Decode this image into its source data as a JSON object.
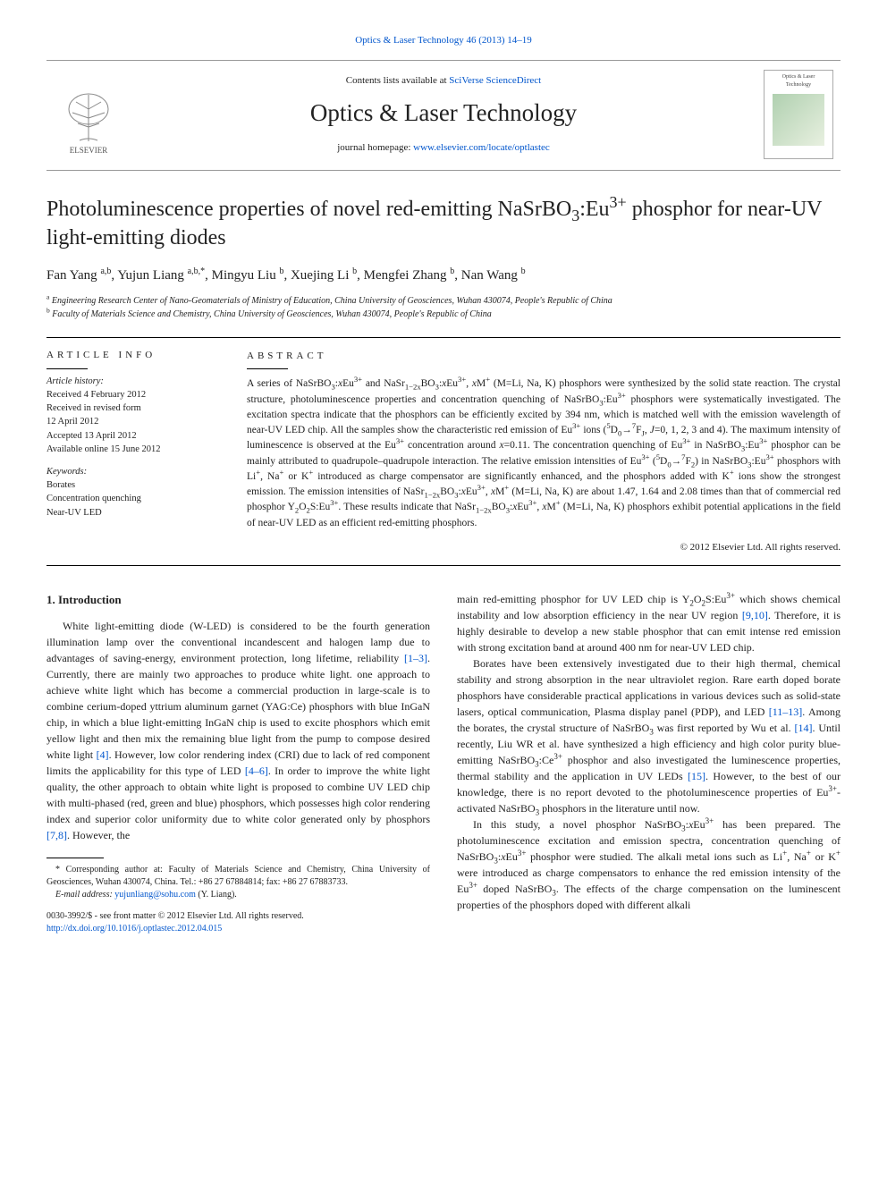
{
  "top_citation_pre": "Optics & Laser Technology 46 (2013) 14–19",
  "header": {
    "contents_pre": "Contents lists available at ",
    "contents_link": "SciVerse ScienceDirect",
    "journal_name": "Optics & Laser Technology",
    "homepage_pre": "journal homepage: ",
    "homepage_link": "www.elsevier.com/locate/optlastec",
    "elsevier_label": "ELSEVIER",
    "cover_label_1": "Optics & Laser",
    "cover_label_2": "Technology"
  },
  "article": {
    "title_html": "Photoluminescence properties of novel red-emitting NaSrBO<sub>3</sub>:Eu<sup>3+</sup> phosphor for near-UV light-emitting diodes",
    "authors_html": "Fan Yang <sup>a,b</sup>, Yujun Liang <sup>a,b,*</sup>, Mingyu Liu <sup>b</sup>, Xuejing Li <sup>b</sup>, Mengfei Zhang <sup>b</sup>, Nan Wang <sup>b</sup>",
    "affiliations": [
      "<sup>a</sup> Engineering Research Center of Nano-Geomaterials of Ministry of Education, China University of Geosciences, Wuhan 430074, People's Republic of China",
      "<sup>b</sup> Faculty of Materials Science and Chemistry, China University of Geosciences, Wuhan 430074, People's Republic of China"
    ]
  },
  "info": {
    "heading": "ARTICLE INFO",
    "history_label": "Article history:",
    "history": [
      "Received 4 February 2012",
      "Received in revised form",
      "12 April 2012",
      "Accepted 13 April 2012",
      "Available online 15 June 2012"
    ],
    "keywords_label": "Keywords:",
    "keywords": [
      "Borates",
      "Concentration quenching",
      "Near-UV LED"
    ]
  },
  "abstract": {
    "heading": "ABSTRACT",
    "body_html": "A series of NaSrBO<sub>3</sub>:<i>x</i>Eu<sup>3+</sup> and NaSr<sub>1−2x</sub>BO<sub>3</sub>:<i>x</i>Eu<sup>3+</sup>, <i>x</i>M<sup>+</sup> (M=Li, Na, K) phosphors were synthesized by the solid state reaction. The crystal structure, photoluminescence properties and concentration quenching of NaSrBO<sub>3</sub>:Eu<sup>3+</sup> phosphors were systematically investigated. The excitation spectra indicate that the phosphors can be efficiently excited by 394 nm, which is matched well with the emission wavelength of near-UV LED chip. All the samples show the characteristic red emission of Eu<sup>3+</sup> ions (<sup>5</sup>D<sub>0</sub>→<sup>7</sup>F<sub>J</sub>, <i>J</i>=0, 1, 2, 3 and 4). The maximum intensity of luminescence is observed at the Eu<sup>3+</sup> concentration around <i>x</i>=0.11. The concentration quenching of Eu<sup>3+</sup> in NaSrBO<sub>3</sub>:Eu<sup>3+</sup> phosphor can be mainly attributed to quadrupole–quadrupole interaction. The relative emission intensities of Eu<sup>3+</sup> (<sup>5</sup>D<sub>0</sub>→<sup>7</sup>F<sub>2</sub>) in NaSrBO<sub>3</sub>:Eu<sup>3+</sup> phosphors with Li<sup>+</sup>, Na<sup>+</sup> or K<sup>+</sup> introduced as charge compensator are significantly enhanced, and the phosphors added with K<sup>+</sup> ions show the strongest emission. The emission intensities of NaSr<sub>1−2x</sub>BO<sub>3</sub>:<i>x</i>Eu<sup>3+</sup>, <i>x</i>M<sup>+</sup> (M=Li, Na, K) are about 1.47, 1.64 and 2.08 times than that of commercial red phosphor Y<sub>2</sub>O<sub>2</sub>S:Eu<sup>3+</sup>. These results indicate that NaSr<sub>1−2x</sub>BO<sub>3</sub>:<i>x</i>Eu<sup>3+</sup>, <i>x</i>M<sup>+</sup> (M=Li, Na, K) phosphors exhibit potential applications in the field of near-UV LED as an efficient red-emitting phosphors.",
    "copyright": "© 2012 Elsevier Ltd. All rights reserved."
  },
  "intro": {
    "heading": "1. Introduction",
    "left_html": "White light-emitting diode (W-LED) is considered to be the fourth generation illumination lamp over the conventional incandescent and halogen lamp due to advantages of saving-energy, environment protection, long lifetime, reliability <a href='#'>[1–3]</a>. Currently, there are mainly two approaches to produce white light. one approach to achieve white light which has become a commercial production in large-scale is to combine cerium-doped yttrium aluminum garnet (YAG:Ce) phosphors with blue InGaN chip, in which a blue light-emitting InGaN chip is used to excite phosphors which emit yellow light and then mix the remaining blue light from the pump to compose desired white light <a href='#'>[4]</a>. However, low color rendering index (CRI) due to lack of red component limits the applicability for this type of LED <a href='#'>[4–6]</a>. In order to improve the white light quality, the other approach to obtain white light is proposed to combine UV LED chip with multi-phased (red, green and blue) phosphors, which possesses high color rendering index and superior color uniformity due to white color generated only by phosphors <a href='#'>[7,8]</a>. However, the",
    "right_p1_html": "main red-emitting phosphor for UV LED chip is Y<sub>2</sub>O<sub>2</sub>S:Eu<sup>3+</sup> which shows chemical instability and low absorption efficiency in the near UV region <a href='#'>[9,10]</a>. Therefore, it is highly desirable to develop a new stable phosphor that can emit intense red emission with strong excitation band at around 400 nm for near-UV LED chip.",
    "right_p2_html": "Borates have been extensively investigated due to their high thermal, chemical stability and strong absorption in the near ultraviolet region. Rare earth doped borate phosphors have considerable practical applications in various devices such as solid-state lasers, optical communication, Plasma display panel (PDP), and LED <a href='#'>[11–13]</a>. Among the borates, the crystal structure of NaSrBO<sub>3</sub> was first reported by Wu et al. <a href='#'>[14]</a>. Until recently, Liu WR et al. have synthesized a high efficiency and high color purity blue-emitting NaSrBO<sub>3</sub>:Ce<sup>3+</sup> phosphor and also investigated the luminescence properties, thermal stability and the application in UV LEDs <a href='#'>[15]</a>. However, to the best of our knowledge, there is no report devoted to the photoluminescence properties of Eu<sup>3+</sup>-activated NaSrBO<sub>3</sub> phosphors in the literature until now.",
    "right_p3_html": "In this study, a novel phosphor NaSrBO<sub>3</sub>:<i>x</i>Eu<sup>3+</sup> has been prepared. The photoluminescence excitation and emission spectra, concentration quenching of NaSrBO<sub>3</sub>:<i>x</i>Eu<sup>3+</sup> phosphor were studied. The alkali metal ions such as Li<sup>+</sup>, Na<sup>+</sup> or K<sup>+</sup> were introduced as charge compensators to enhance the red emission intensity of the Eu<sup>3+</sup> doped NaSrBO<sub>3</sub>. The effects of the charge compensation on the luminescent properties of the phosphors doped with different alkali"
  },
  "footnotes": {
    "corresponding": "* Corresponding author at: Faculty of Materials Science and Chemistry, China University of Geosciences, Wuhan 430074, China. Tel.: +86 27 67884814; fax: +86 27 67883733.",
    "email_label": "E-mail address: ",
    "email": "yujunliang@sohu.com",
    "email_suffix": " (Y. Liang).",
    "doi_line1": "0030-3992/$ - see front matter © 2012 Elsevier Ltd. All rights reserved.",
    "doi_line2": "http://dx.doi.org/10.1016/j.optlastec.2012.04.015"
  },
  "colors": {
    "link": "#0055cc",
    "text": "#222222",
    "rule": "#000000"
  }
}
